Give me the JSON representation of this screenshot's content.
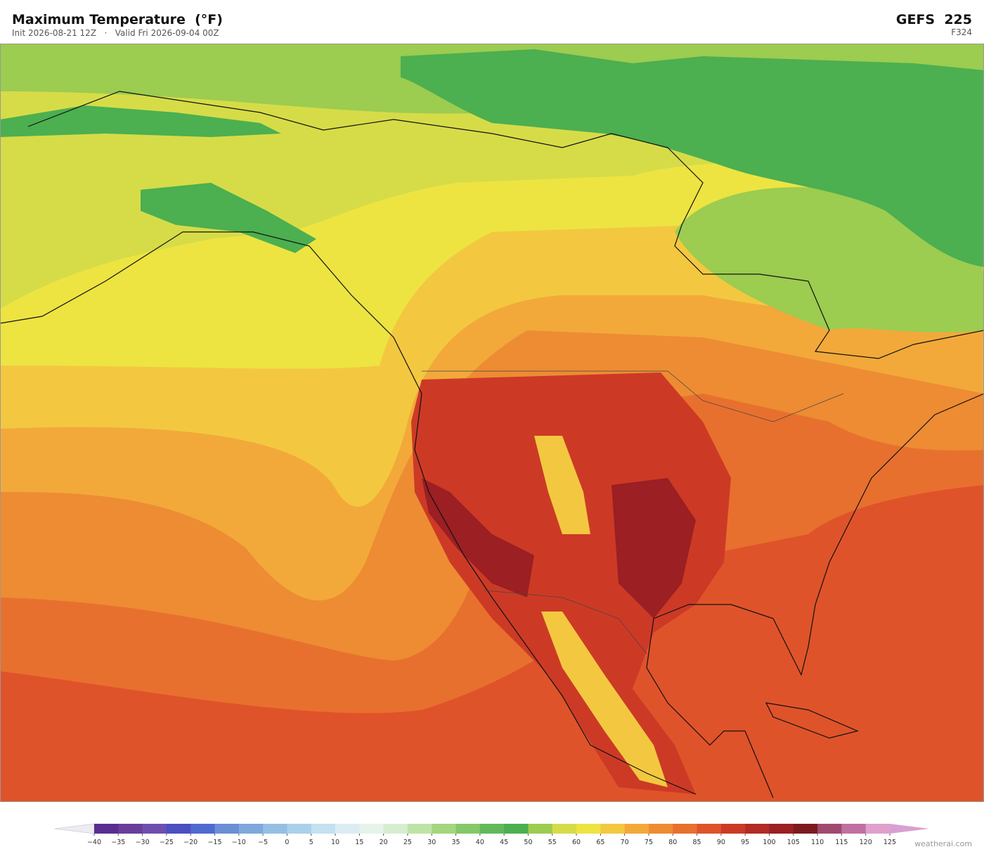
{
  "header": {
    "title": "Maximum Temperature  (°F)",
    "subtitle": "Init 2026-08-21 12Z   ·   Valid Fri 2026-09-04 00Z",
    "model": "GEFS  225",
    "forecast_hour": "F324"
  },
  "colorbar": {
    "labels": [
      "−40",
      "−35",
      "−30",
      "−25",
      "−20",
      "−15",
      "−10",
      "−5",
      "0",
      "5",
      "10",
      "15",
      "20",
      "25",
      "30",
      "35",
      "40",
      "45",
      "50",
      "55",
      "60",
      "65",
      "70",
      "75",
      "80",
      "85",
      "90",
      "95",
      "100",
      "105",
      "110",
      "115",
      "120",
      "125"
    ],
    "colors": [
      "#5a2d91",
      "#6a3d9a",
      "#6e4fb0",
      "#4b4fc0",
      "#4f6bd0",
      "#6a8fd6",
      "#7fa8dc",
      "#94bfe3",
      "#a9d1ec",
      "#c3e1f0",
      "#dcecf3",
      "#e6f3e8",
      "#d5edd0",
      "#bfe3a5",
      "#a3d67f",
      "#84c86a",
      "#63b95a",
      "#4caf50",
      "#9ccc50",
      "#d6dc48",
      "#ede442",
      "#f3c840",
      "#f2a93a",
      "#ed8c33",
      "#e8702e",
      "#df532a",
      "#cc3a26",
      "#b32b25",
      "#9b1f23",
      "#7d1a20",
      "#a04a70",
      "#c070a0",
      "#dfa0cc"
    ],
    "under_color": "#ececf2",
    "over_color": "#d8a0d0"
  },
  "footer": {
    "credit": "weatherai.com"
  }
}
